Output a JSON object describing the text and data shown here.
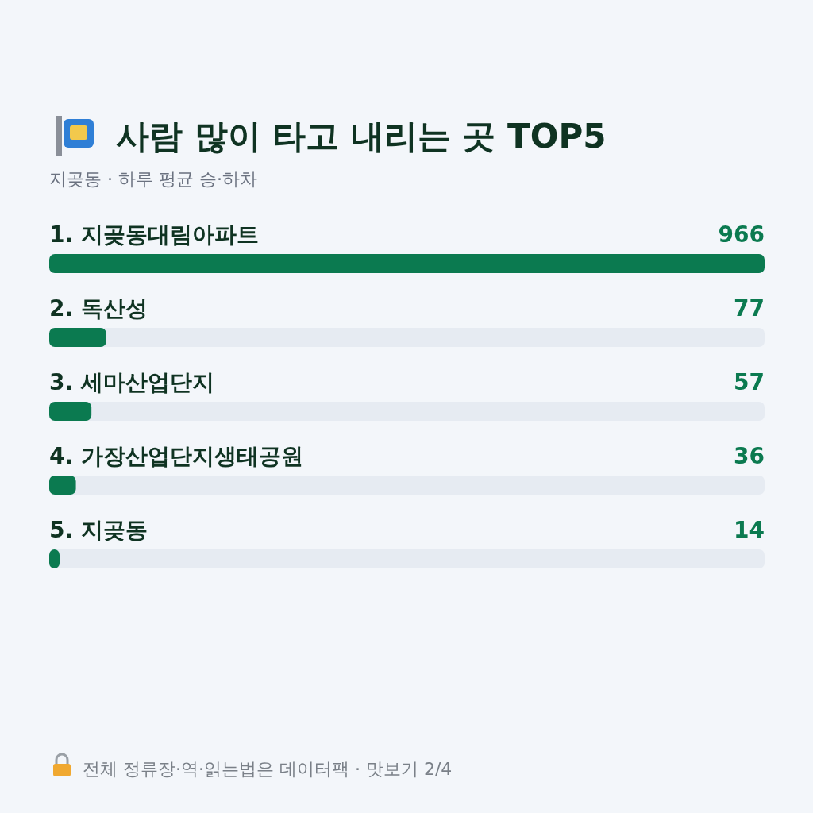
{
  "chart_data": {
    "type": "bar",
    "orientation": "horizontal",
    "title": "사람 많이 타고 내리는 곳 TOP5",
    "subtitle": "지곶동 · 하루 평균 승·하차",
    "categories": [
      "1. 지곶동대림아파트",
      "2. 독산성",
      "3. 세마산업단지",
      "4. 가장산업단지생태공원",
      "5. 지곶동"
    ],
    "values": [
      966,
      77,
      57,
      36,
      14
    ],
    "color": "#0b7a50",
    "data_labels": true,
    "annotations": [
      "전체 정류장·역·읽는법은 데이터팩 · 맛보기 2/4"
    ]
  }
}
